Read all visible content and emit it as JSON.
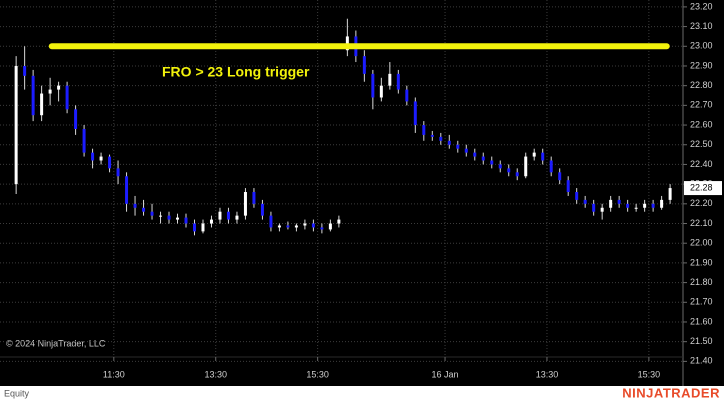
{
  "chart_data": {
    "type": "candlestick",
    "annotation": "FRO > 23 Long trigger",
    "copyright": "© 2024 NinjaTrader, LLC",
    "footer_label": "Equity",
    "brand": "NINJATRADER",
    "up_color": "#ffffff",
    "down_color": "#1c1cff",
    "wick_color": "#d8d8d8",
    "grid": true,
    "ylim": [
      21.28,
      23.235
    ],
    "yticks": [
      {
        "value": 23.2,
        "label": "23.20"
      },
      {
        "value": 23.1,
        "label": "23.10"
      },
      {
        "value": 23.0,
        "label": "23.00"
      },
      {
        "value": 22.9,
        "label": "22.90"
      },
      {
        "value": 22.8,
        "label": "22.80"
      },
      {
        "value": 22.7,
        "label": "22.70"
      },
      {
        "value": 22.6,
        "label": "22.60"
      },
      {
        "value": 22.5,
        "label": "22.50"
      },
      {
        "value": 22.4,
        "label": "22.40"
      },
      {
        "value": 22.3,
        "label": "22.30"
      },
      {
        "value": 22.2,
        "label": "22.20"
      },
      {
        "value": 22.1,
        "label": "22.10"
      },
      {
        "value": 22.0,
        "label": "22.00"
      },
      {
        "value": 21.9,
        "label": "21.90"
      },
      {
        "value": 21.8,
        "label": "21.80"
      },
      {
        "value": 21.7,
        "label": "21.70"
      },
      {
        "value": 21.6,
        "label": "21.60"
      },
      {
        "value": 21.5,
        "label": "21.50"
      },
      {
        "value": 21.4,
        "label": "21.40"
      }
    ],
    "xlim": [
      -1.9,
      78.4
    ],
    "xticks": [
      {
        "value": 11.5,
        "label": "11:30"
      },
      {
        "value": 23.5,
        "label": "13:30"
      },
      {
        "value": 35.5,
        "label": "15:30"
      },
      {
        "value": 50.5,
        "label": "16 Jan"
      },
      {
        "value": 62.5,
        "label": "13:30"
      },
      {
        "value": 74.5,
        "label": "15:30"
      }
    ],
    "x": [
      0,
      1,
      2,
      3,
      4,
      5,
      6,
      7,
      8,
      9,
      10,
      11,
      12,
      13,
      14,
      15,
      16,
      17,
      18,
      19,
      20,
      21,
      22,
      23,
      24,
      25,
      26,
      27,
      28,
      29,
      30,
      31,
      32,
      33,
      34,
      35,
      36,
      37,
      38,
      39,
      40,
      41,
      42,
      43,
      44,
      45,
      46,
      47,
      48,
      49,
      50,
      51,
      52,
      53,
      54,
      55,
      56,
      57,
      58,
      59,
      60,
      61,
      62,
      63,
      64,
      65,
      66,
      67,
      68,
      69,
      70,
      71,
      72,
      73,
      74,
      75,
      76,
      77
    ],
    "open": [
      22.3,
      22.9,
      22.85,
      22.65,
      22.76,
      22.78,
      22.8,
      22.68,
      22.58,
      22.46,
      22.42,
      22.44,
      22.38,
      22.34,
      22.2,
      22.18,
      22.16,
      22.14,
      22.14,
      22.12,
      22.13,
      22.1,
      22.06,
      22.1,
      22.12,
      22.16,
      22.12,
      22.14,
      22.26,
      22.2,
      22.14,
      22.08,
      22.09,
      22.08,
      22.09,
      22.1,
      22.08,
      22.07,
      22.1,
      22.98,
      23.05,
      22.95,
      22.86,
      22.74,
      22.8,
      22.86,
      22.78,
      22.72,
      22.6,
      22.55,
      22.54,
      22.52,
      22.5,
      22.48,
      22.46,
      22.44,
      22.42,
      22.4,
      22.38,
      22.36,
      22.34,
      22.44,
      22.46,
      22.42,
      22.36,
      22.32,
      22.26,
      22.22,
      22.2,
      22.16,
      22.18,
      22.22,
      22.2,
      22.18,
      22.18,
      22.2,
      22.18,
      22.22
    ],
    "high": [
      22.95,
      23.0,
      22.88,
      22.8,
      22.84,
      22.82,
      22.82,
      22.7,
      22.6,
      22.48,
      22.46,
      22.45,
      22.42,
      22.36,
      22.24,
      22.22,
      22.2,
      22.16,
      22.16,
      22.15,
      22.15,
      22.12,
      22.12,
      22.14,
      22.18,
      22.18,
      22.16,
      22.28,
      22.28,
      22.22,
      22.16,
      22.1,
      22.11,
      22.1,
      22.12,
      22.12,
      22.1,
      22.12,
      22.14,
      23.14,
      23.08,
      22.98,
      22.88,
      22.84,
      22.92,
      22.88,
      22.8,
      22.74,
      22.62,
      22.57,
      22.56,
      22.55,
      22.52,
      22.5,
      22.48,
      22.46,
      22.44,
      22.42,
      22.4,
      22.38,
      22.46,
      22.48,
      22.48,
      22.44,
      22.38,
      22.34,
      22.28,
      22.24,
      22.22,
      22.2,
      22.24,
      22.24,
      22.22,
      22.2,
      22.22,
      22.22,
      22.24,
      22.3
    ],
    "low": [
      22.25,
      22.78,
      22.62,
      22.62,
      22.7,
      22.72,
      22.66,
      22.55,
      22.44,
      22.38,
      22.4,
      22.36,
      22.3,
      22.16,
      22.14,
      22.14,
      22.12,
      22.1,
      22.1,
      22.1,
      22.08,
      22.04,
      22.05,
      22.08,
      22.1,
      22.1,
      22.1,
      22.12,
      22.18,
      22.12,
      22.06,
      22.06,
      22.07,
      22.06,
      22.07,
      22.06,
      22.05,
      22.06,
      22.08,
      22.95,
      22.92,
      22.82,
      22.68,
      22.72,
      22.78,
      22.76,
      22.7,
      22.56,
      22.52,
      22.52,
      22.5,
      22.48,
      22.46,
      22.44,
      22.42,
      22.4,
      22.38,
      22.36,
      22.34,
      22.32,
      22.33,
      22.42,
      22.4,
      22.34,
      22.3,
      22.24,
      22.2,
      22.18,
      22.14,
      22.12,
      22.16,
      22.18,
      22.16,
      22.16,
      22.16,
      22.16,
      22.17,
      22.2
    ],
    "close": [
      22.9,
      22.85,
      22.65,
      22.76,
      22.78,
      22.8,
      22.68,
      22.58,
      22.46,
      22.42,
      22.44,
      22.38,
      22.34,
      22.2,
      22.18,
      22.16,
      22.14,
      22.14,
      22.12,
      22.13,
      22.1,
      22.06,
      22.1,
      22.12,
      22.16,
      22.12,
      22.14,
      22.26,
      22.2,
      22.14,
      22.08,
      22.09,
      22.08,
      22.09,
      22.1,
      22.08,
      22.07,
      22.1,
      22.12,
      23.05,
      22.95,
      22.86,
      22.74,
      22.8,
      22.86,
      22.78,
      22.72,
      22.6,
      22.55,
      22.54,
      22.52,
      22.5,
      22.48,
      22.46,
      22.44,
      22.42,
      22.4,
      22.38,
      22.36,
      22.34,
      22.44,
      22.46,
      22.42,
      22.36,
      22.32,
      22.26,
      22.22,
      22.2,
      22.16,
      22.18,
      22.22,
      22.2,
      22.18,
      22.18,
      22.2,
      22.18,
      22.22,
      22.28
    ],
    "last_price": 22.28,
    "hline": {
      "y": 23,
      "x": [
        4.2,
        76.6
      ],
      "color": "#f2f20c"
    }
  }
}
